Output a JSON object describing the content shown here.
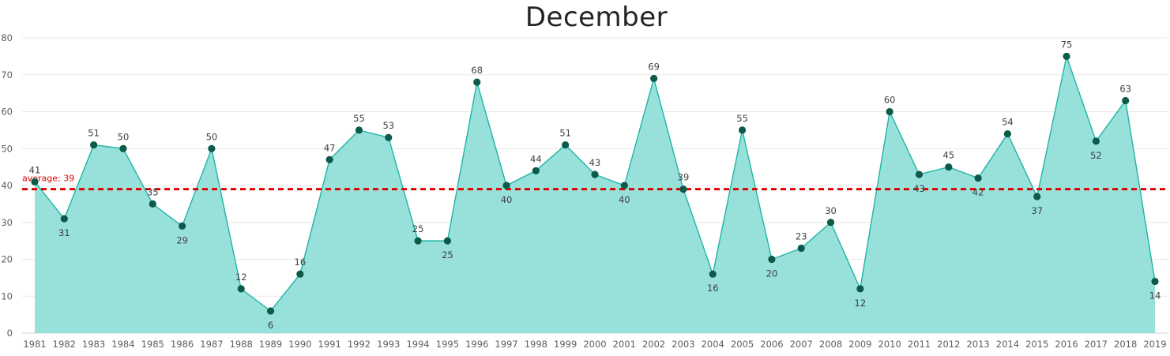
{
  "chart_data": {
    "type": "area",
    "title": "December",
    "xlabel": "",
    "ylabel": "",
    "ylim": [
      0,
      80
    ],
    "yticks": [
      0,
      10,
      20,
      30,
      40,
      50,
      60,
      70,
      80
    ],
    "grid": true,
    "categories": [
      "1981",
      "1982",
      "1983",
      "1984",
      "1985",
      "1986",
      "1987",
      "1988",
      "1989",
      "1990",
      "1991",
      "1992",
      "1993",
      "1994",
      "1995",
      "1996",
      "1997",
      "1998",
      "1999",
      "2000",
      "2001",
      "2002",
      "2003",
      "2004",
      "2005",
      "2006",
      "2007",
      "2008",
      "2009",
      "2010",
      "2011",
      "2012",
      "2013",
      "2014",
      "2015",
      "2016",
      "2017",
      "2018",
      "2019"
    ],
    "series": [
      {
        "values": [
          41,
          31,
          51,
          50,
          35,
          29,
          50,
          12,
          6,
          16,
          47,
          55,
          53,
          25,
          25,
          68,
          40,
          44,
          51,
          43,
          40,
          69,
          39,
          16,
          55,
          20,
          23,
          30,
          12,
          60,
          43,
          45,
          42,
          54,
          37,
          75,
          52,
          63,
          14
        ]
      }
    ],
    "data_label_positions": [
      "above",
      "below",
      "above",
      "above",
      "above",
      "below",
      "above",
      "above",
      "below",
      "above",
      "above",
      "above",
      "above",
      "above",
      "below",
      "above",
      "below",
      "above",
      "above",
      "above",
      "below",
      "above",
      "above",
      "below",
      "above",
      "below",
      "above",
      "above",
      "below",
      "above",
      "below",
      "above",
      "below",
      "above",
      "below",
      "above",
      "below",
      "above",
      "below"
    ],
    "reference_line": {
      "label": "average: 39",
      "value": 39,
      "color": "#e00000"
    },
    "colors": {
      "area_fill": "#97e1da",
      "line": "#1fb5a7",
      "marker": "#0b5a4a",
      "grid": "#e8e8e8"
    }
  }
}
